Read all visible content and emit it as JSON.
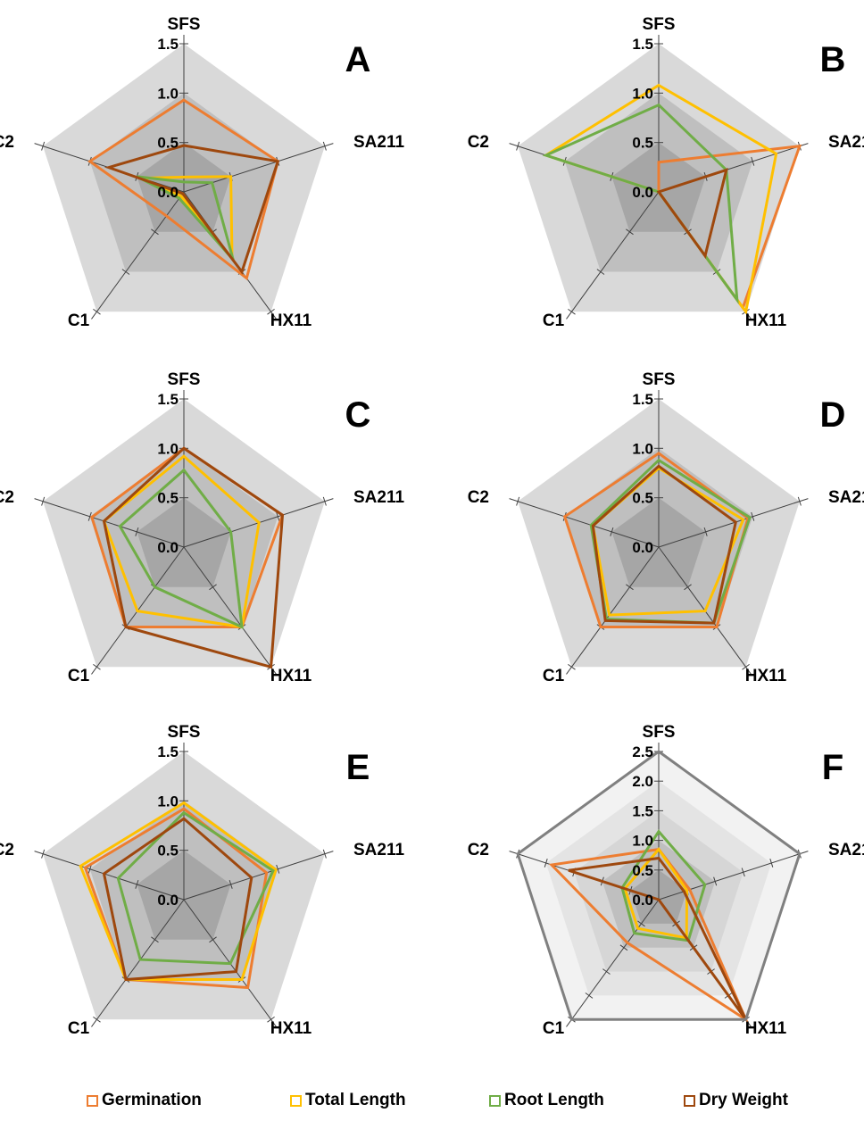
{
  "colors": {
    "Germination": "#ED7D31",
    "Total Length": "#FFC000",
    "Root Length": "#70AD47",
    "Dry Weight": "#9E480E",
    "reference": "#808080"
  },
  "legend": [
    "Germination",
    "Total Length",
    "Root Length",
    "Dry Weight"
  ],
  "chart_data": [
    {
      "type": "radar",
      "panel": "A",
      "axes": [
        "SFS",
        "SA211",
        "HX11",
        "C1",
        "C2"
      ],
      "ticks": [
        "0.0",
        "0.5",
        "1.0",
        "1.5"
      ],
      "ylim": [
        0,
        1.5
      ],
      "series": [
        {
          "name": "Germination",
          "values": [
            0.93,
            1.0,
            1.08,
            0.3,
            1.0
          ]
        },
        {
          "name": "Total Length",
          "values": [
            0.15,
            0.5,
            0.83,
            0.05,
            0.45
          ]
        },
        {
          "name": "Root Length",
          "values": [
            0.1,
            0.3,
            0.85,
            0.08,
            0.5
          ]
        },
        {
          "name": "Dry Weight",
          "values": [
            0.47,
            1.0,
            1.0,
            0.02,
            0.8
          ]
        }
      ]
    },
    {
      "type": "radar",
      "panel": "B",
      "axes": [
        "SFS",
        "SA211",
        "HX11",
        "C1",
        "C2"
      ],
      "ticks": [
        "0.0",
        "0.5",
        "1.0",
        "1.5"
      ],
      "ylim": [
        0,
        1.5
      ],
      "series": [
        {
          "name": "Germination",
          "values": [
            0.3,
            1.5,
            1.45,
            0.0,
            0.0
          ]
        },
        {
          "name": "Total Length",
          "values": [
            1.08,
            1.25,
            1.5,
            0.0,
            1.2
          ]
        },
        {
          "name": "Root Length",
          "values": [
            0.88,
            0.72,
            1.35,
            0.0,
            1.2
          ]
        },
        {
          "name": "Dry Weight",
          "values": [
            0.0,
            0.72,
            0.8,
            0.0,
            0.0
          ]
        }
      ]
    },
    {
      "type": "radar",
      "panel": "C",
      "axes": [
        "SFS",
        "SA211",
        "HX11",
        "C1",
        "C2"
      ],
      "ticks": [
        "0.0",
        "0.5",
        "1.0",
        "1.5"
      ],
      "ylim": [
        0,
        1.5
      ],
      "series": [
        {
          "name": "Germination",
          "values": [
            1.0,
            1.05,
            1.0,
            1.0,
            0.98
          ]
        },
        {
          "name": "Total Length",
          "values": [
            0.92,
            0.8,
            1.0,
            0.8,
            0.85
          ]
        },
        {
          "name": "Root Length",
          "values": [
            0.78,
            0.5,
            1.0,
            0.5,
            0.68
          ]
        },
        {
          "name": "Dry Weight",
          "values": [
            1.0,
            1.05,
            1.5,
            1.0,
            0.85
          ]
        }
      ]
    },
    {
      "type": "radar",
      "panel": "D",
      "axes": [
        "SFS",
        "SA211",
        "HX11",
        "C1",
        "C2"
      ],
      "ticks": [
        "0.0",
        "0.5",
        "1.0",
        "1.5"
      ],
      "ylim": [
        0,
        1.5
      ],
      "series": [
        {
          "name": "Germination",
          "values": [
            0.95,
            0.95,
            1.0,
            1.0,
            1.0
          ]
        },
        {
          "name": "Total Length",
          "values": [
            0.8,
            0.9,
            0.8,
            0.85,
            0.7
          ]
        },
        {
          "name": "Root Length",
          "values": [
            0.88,
            0.97,
            0.95,
            0.9,
            0.72
          ]
        },
        {
          "name": "Dry Weight",
          "values": [
            0.82,
            0.82,
            0.95,
            0.92,
            0.7
          ]
        }
      ]
    },
    {
      "type": "radar",
      "panel": "E",
      "axes": [
        "SFS",
        "SA211",
        "HX11",
        "C1",
        "C2"
      ],
      "ticks": [
        "0.0",
        "0.5",
        "1.0",
        "1.5"
      ],
      "ylim": [
        0,
        1.5
      ],
      "series": [
        {
          "name": "Germination",
          "values": [
            0.92,
            0.88,
            1.1,
            1.0,
            1.05
          ]
        },
        {
          "name": "Total Length",
          "values": [
            0.98,
            0.98,
            1.0,
            1.0,
            1.1
          ]
        },
        {
          "name": "Root Length",
          "values": [
            0.88,
            0.95,
            0.8,
            0.75,
            0.7
          ]
        },
        {
          "name": "Dry Weight",
          "values": [
            0.82,
            0.72,
            0.9,
            1.0,
            0.85
          ]
        }
      ]
    },
    {
      "type": "radar",
      "panel": "F",
      "axes": [
        "SFS",
        "SA211",
        "HX11",
        "C1",
        "C2"
      ],
      "ticks": [
        "0.0",
        "0.5",
        "1.0",
        "1.5",
        "2.0",
        "2.5"
      ],
      "ylim": [
        0,
        2.5
      ],
      "series": [
        {
          "name": "Germination",
          "values": [
            0.85,
            0.55,
            2.5,
            0.9,
            1.9
          ]
        },
        {
          "name": "Total Length",
          "values": [
            0.85,
            0.5,
            0.8,
            0.6,
            0.6
          ]
        },
        {
          "name": "Root Length",
          "values": [
            1.15,
            0.82,
            0.85,
            0.7,
            0.65
          ]
        },
        {
          "name": "Dry Weight",
          "values": [
            0.7,
            0.45,
            2.5,
            0.0,
            1.6
          ]
        }
      ]
    }
  ]
}
